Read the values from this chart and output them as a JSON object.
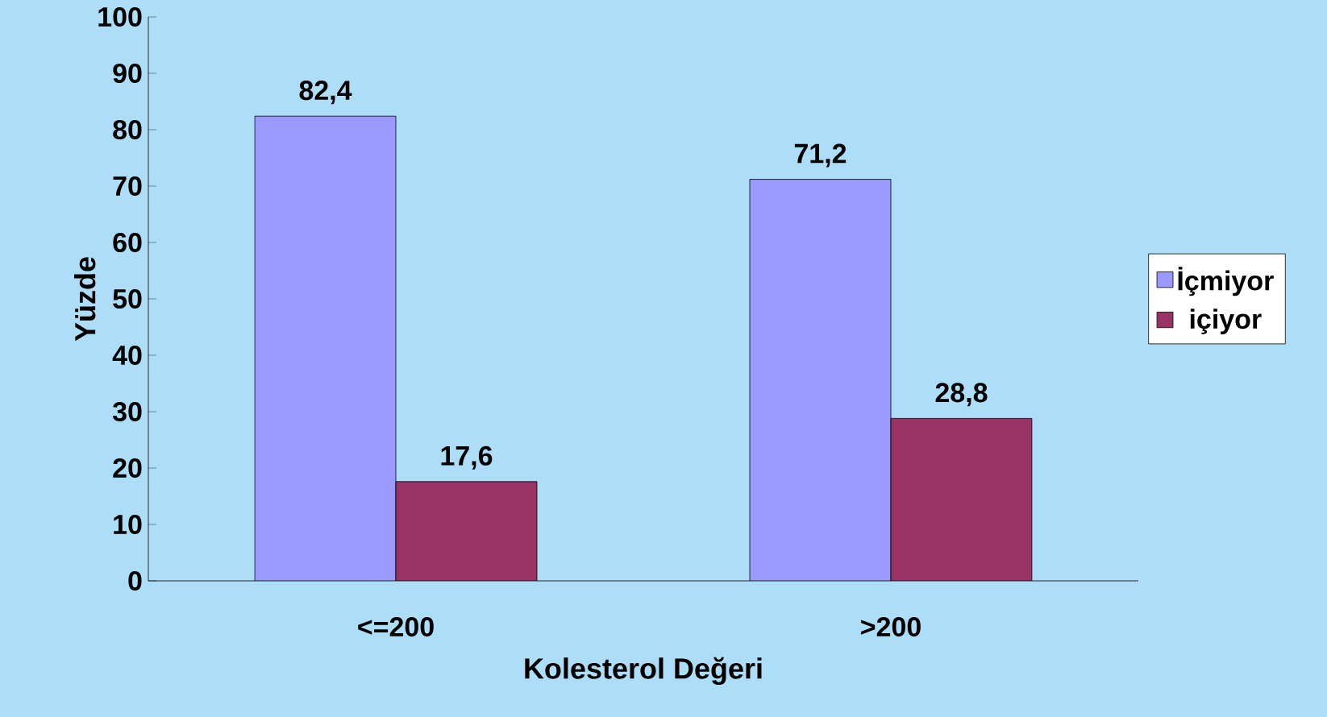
{
  "chart_data": {
    "type": "bar",
    "xlabel": "Kolesterol Değeri",
    "ylabel": "Yüzde",
    "categories": [
      "<=200",
      ">200"
    ],
    "series": [
      {
        "name": "İçmiyor",
        "color": "#9999ff",
        "values": [
          82.4,
          71.2
        ],
        "value_labels": [
          "82,4",
          "71,2"
        ]
      },
      {
        "name": "içiyor",
        "color": "#993366",
        "values": [
          17.6,
          28.8
        ],
        "value_labels": [
          "17,6",
          "28,8"
        ]
      }
    ],
    "ylim": [
      0,
      100
    ],
    "yticks": [
      0,
      10,
      20,
      30,
      40,
      50,
      60,
      70,
      80,
      90,
      100
    ],
    "legend": "right"
  }
}
